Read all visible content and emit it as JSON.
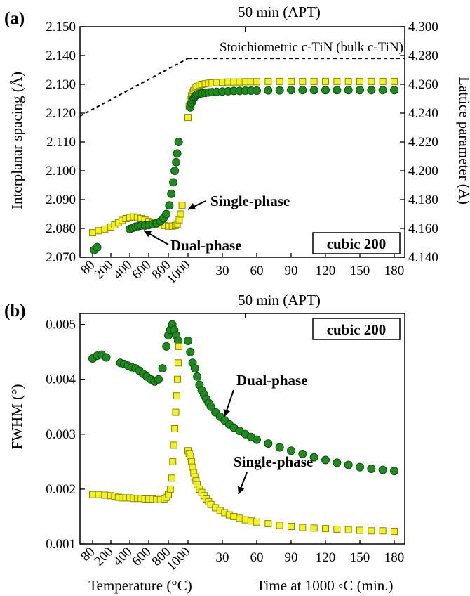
{
  "colors": {
    "dual": "#1f8a1f",
    "dual_edge": "#0c4d0c",
    "single": "#f4f21e",
    "single_edge": "#8a8a00"
  },
  "chart_data": [
    {
      "type": "scatter",
      "panel_label": "(a)",
      "top_label": "50 min (APT)",
      "ylabel": "Interplanar spacing (Å)",
      "ylabel_right": "Lattice parameter (Å)",
      "ylim": [
        2.07,
        2.15
      ],
      "ylim_right": [
        4.14,
        4.3
      ],
      "yticks": [
        "2.070",
        "2.080",
        "2.090",
        "2.100",
        "2.110",
        "2.120",
        "2.130",
        "2.140",
        "2.150"
      ],
      "yticks_right": [
        "4.140",
        "4.160",
        "4.180",
        "4.200",
        "4.220",
        "4.240",
        "4.260",
        "4.280",
        "4.300"
      ],
      "x_temperature_ticks": [
        "80",
        "200",
        "400",
        "600",
        "800",
        "1000"
      ],
      "x_time_ticks": [
        "30",
        "60",
        "90",
        "120",
        "150",
        "180"
      ],
      "box_label": "cubic 200",
      "reference_label": "Stoichiometric c-TiN (bulk c-TiN)",
      "reference_line": {
        "temperature": [
          [
            80,
            2.119
          ],
          [
            1000,
            2.139
          ]
        ],
        "time_value": 2.139
      },
      "annotations": [
        "Single-phase",
        "Dual-phase"
      ],
      "series": [
        {
          "key": "single",
          "marker": "square",
          "temperature": [
            [
              80,
              2.0785
            ],
            [
              120,
              2.0792
            ],
            [
              160,
              2.0798
            ],
            [
              200,
              2.0805
            ],
            [
              240,
              2.0812
            ],
            [
              280,
              2.082
            ],
            [
              320,
              2.0828
            ],
            [
              360,
              2.0834
            ],
            [
              400,
              2.0838
            ],
            [
              440,
              2.084
            ],
            [
              480,
              2.0838
            ],
            [
              520,
              2.0834
            ],
            [
              560,
              2.0829
            ],
            [
              600,
              2.0824
            ],
            [
              640,
              2.082
            ],
            [
              680,
              2.0815
            ],
            [
              720,
              2.0812
            ],
            [
              760,
              2.081
            ],
            [
              800,
              2.0808
            ],
            [
              840,
              2.0808
            ],
            [
              870,
              2.081
            ],
            [
              890,
              2.0815
            ],
            [
              910,
              2.083
            ],
            [
              925,
              2.085
            ],
            [
              940,
              2.088
            ]
          ],
          "time": [
            [
              0,
              2.1185
            ],
            [
              1,
              2.1225
            ],
            [
              2,
              2.1245
            ],
            [
              3,
              2.126
            ],
            [
              4,
              2.127
            ],
            [
              5,
              2.1278
            ],
            [
              6,
              2.1284
            ],
            [
              7,
              2.1289
            ],
            [
              8,
              2.1293
            ],
            [
              10,
              2.1297
            ],
            [
              12,
              2.13
            ],
            [
              15,
              2.1302
            ],
            [
              18,
              2.1304
            ],
            [
              21,
              2.1305
            ],
            [
              25,
              2.1306
            ],
            [
              30,
              2.1307
            ],
            [
              35,
              2.1308
            ],
            [
              40,
              2.1308
            ],
            [
              45,
              2.1308
            ],
            [
              50,
              2.1309
            ],
            [
              55,
              2.1309
            ],
            [
              60,
              2.1309
            ],
            [
              70,
              2.131
            ],
            [
              80,
              2.131
            ],
            [
              90,
              2.131
            ],
            [
              100,
              2.131
            ],
            [
              110,
              2.131
            ],
            [
              120,
              2.131
            ],
            [
              130,
              2.131
            ],
            [
              140,
              2.131
            ],
            [
              150,
              2.131
            ],
            [
              160,
              2.131
            ],
            [
              170,
              2.131
            ],
            [
              180,
              2.131
            ]
          ]
        },
        {
          "key": "dual",
          "marker": "circle",
          "temperature": [
            [
              90,
              2.0725
            ],
            [
              110,
              2.0735
            ],
            [
              400,
              2.0798
            ],
            [
              430,
              2.0802
            ],
            [
              460,
              2.0806
            ],
            [
              490,
              2.0808
            ],
            [
              520,
              2.081
            ],
            [
              560,
              2.081
            ],
            [
              600,
              2.0812
            ],
            [
              640,
              2.0815
            ],
            [
              680,
              2.0818
            ],
            [
              720,
              2.0825
            ],
            [
              750,
              2.0835
            ],
            [
              780,
              2.085
            ],
            [
              810,
              2.088
            ],
            [
              830,
              2.092
            ],
            [
              850,
              2.096
            ],
            [
              865,
              2.1
            ],
            [
              880,
              2.103
            ],
            [
              890,
              2.106
            ],
            [
              905,
              2.11
            ]
          ],
          "time": [
            [
              2,
              2.122
            ],
            [
              3,
              2.1235
            ],
            [
              4,
              2.1245
            ],
            [
              5,
              2.1252
            ],
            [
              6,
              2.1258
            ],
            [
              7,
              2.1262
            ],
            [
              8,
              2.1265
            ],
            [
              10,
              2.1267
            ],
            [
              12,
              2.1269
            ],
            [
              15,
              2.127
            ],
            [
              18,
              2.1272
            ],
            [
              21,
              2.1273
            ],
            [
              25,
              2.1274
            ],
            [
              30,
              2.1275
            ],
            [
              35,
              2.1276
            ],
            [
              40,
              2.1277
            ],
            [
              45,
              2.1277
            ],
            [
              50,
              2.1278
            ],
            [
              55,
              2.1278
            ],
            [
              60,
              2.1278
            ],
            [
              70,
              2.1279
            ],
            [
              80,
              2.1279
            ],
            [
              90,
              2.128
            ],
            [
              100,
              2.128
            ],
            [
              110,
              2.128
            ],
            [
              120,
              2.128
            ],
            [
              130,
              2.128
            ],
            [
              140,
              2.128
            ],
            [
              150,
              2.128
            ],
            [
              160,
              2.128
            ],
            [
              170,
              2.128
            ],
            [
              180,
              2.128
            ]
          ]
        }
      ]
    },
    {
      "type": "scatter",
      "panel_label": "(b)",
      "top_label": "50 min (APT)",
      "ylabel": "FWHM (°)",
      "ylim": [
        0.001,
        0.0052
      ],
      "yticks": [
        "0.001",
        "0.002",
        "0.003",
        "0.004",
        "0.005"
      ],
      "x_temperature_ticks": [
        "80",
        "200",
        "400",
        "600",
        "800",
        "1000"
      ],
      "x_time_ticks": [
        "30",
        "60",
        "90",
        "120",
        "150",
        "180"
      ],
      "box_label": "cubic 200",
      "xlabel_temperature": "Temperature (°C)",
      "xlabel_time": "Time at 1000 ◦C (min.)",
      "annotations": [
        "Dual-phase",
        "Single-phase"
      ],
      "series": [
        {
          "key": "dual",
          "marker": "circle",
          "temperature": [
            [
              80,
              0.00438
            ],
            [
              110,
              0.00443
            ],
            [
              140,
              0.00445
            ],
            [
              170,
              0.0044
            ],
            [
              300,
              0.0043
            ],
            [
              340,
              0.00428
            ],
            [
              380,
              0.00425
            ],
            [
              420,
              0.00422
            ],
            [
              460,
              0.0042
            ],
            [
              500,
              0.00416
            ],
            [
              540,
              0.0041
            ],
            [
              580,
              0.00405
            ],
            [
              620,
              0.004
            ],
            [
              660,
              0.00396
            ],
            [
              700,
              0.004
            ],
            [
              740,
              0.0042
            ],
            [
              780,
              0.0046
            ],
            [
              800,
              0.0048
            ],
            [
              820,
              0.0049
            ],
            [
              840,
              0.005
            ],
            [
              860,
              0.0049
            ],
            [
              880,
              0.0048
            ],
            [
              900,
              0.0047
            ]
          ],
          "time": [
            [
              0,
              0.0047
            ],
            [
              2,
              0.0045
            ],
            [
              4,
              0.0043
            ],
            [
              6,
              0.0042
            ],
            [
              8,
              0.00405
            ],
            [
              10,
              0.0039
            ],
            [
              12,
              0.0038
            ],
            [
              14,
              0.00372
            ],
            [
              16,
              0.00364
            ],
            [
              18,
              0.00357
            ],
            [
              20,
              0.0035
            ],
            [
              24,
              0.0034
            ],
            [
              28,
              0.00332
            ],
            [
              32,
              0.00325
            ],
            [
              36,
              0.00318
            ],
            [
              40,
              0.00312
            ],
            [
              45,
              0.00306
            ],
            [
              50,
              0.003
            ],
            [
              55,
              0.00295
            ],
            [
              60,
              0.0029
            ],
            [
              70,
              0.00283
            ],
            [
              80,
              0.00276
            ],
            [
              90,
              0.0027
            ],
            [
              100,
              0.00264
            ],
            [
              110,
              0.00258
            ],
            [
              120,
              0.00253
            ],
            [
              130,
              0.00248
            ],
            [
              140,
              0.00244
            ],
            [
              150,
              0.0024
            ],
            [
              160,
              0.00237
            ],
            [
              170,
              0.00235
            ],
            [
              180,
              0.00233
            ]
          ]
        },
        {
          "key": "single",
          "marker": "square",
          "temperature": [
            [
              80,
              0.0019
            ],
            [
              120,
              0.0019
            ],
            [
              160,
              0.00189
            ],
            [
              200,
              0.00188
            ],
            [
              240,
              0.00187
            ],
            [
              280,
              0.00185
            ],
            [
              320,
              0.00184
            ],
            [
              360,
              0.00184
            ],
            [
              400,
              0.00184
            ],
            [
              440,
              0.00183
            ],
            [
              480,
              0.00183
            ],
            [
              520,
              0.00183
            ],
            [
              560,
              0.00182
            ],
            [
              600,
              0.00182
            ],
            [
              640,
              0.00182
            ],
            [
              680,
              0.00181
            ],
            [
              720,
              0.00181
            ],
            [
              760,
              0.00182
            ],
            [
              780,
              0.00185
            ],
            [
              800,
              0.0019
            ],
            [
              820,
              0.002
            ],
            [
              835,
              0.0022
            ],
            [
              845,
              0.0025
            ],
            [
              855,
              0.0028
            ],
            [
              865,
              0.0031
            ],
            [
              875,
              0.0034
            ],
            [
              885,
              0.0037
            ],
            [
              893,
              0.004
            ],
            [
              900,
              0.0043
            ],
            [
              908,
              0.0046
            ]
          ],
          "time": [
            [
              0,
              0.0027
            ],
            [
              1,
              0.00265
            ],
            [
              2,
              0.0026
            ],
            [
              3,
              0.0025
            ],
            [
              4,
              0.0024
            ],
            [
              5,
              0.0023
            ],
            [
              6,
              0.00222
            ],
            [
              7,
              0.00215
            ],
            [
              8,
              0.00208
            ],
            [
              10,
              0.002
            ],
            [
              12,
              0.00194
            ],
            [
              14,
              0.00188
            ],
            [
              16,
              0.00182
            ],
            [
              18,
              0.00177
            ],
            [
              20,
              0.00172
            ],
            [
              24,
              0.00166
            ],
            [
              28,
              0.00161
            ],
            [
              32,
              0.00157
            ],
            [
              36,
              0.00153
            ],
            [
              40,
              0.0015
            ],
            [
              45,
              0.00147
            ],
            [
              50,
              0.00144
            ],
            [
              55,
              0.00142
            ],
            [
              60,
              0.0014
            ],
            [
              70,
              0.00137
            ],
            [
              80,
              0.00134
            ],
            [
              90,
              0.00132
            ],
            [
              100,
              0.0013
            ],
            [
              110,
              0.00129
            ],
            [
              120,
              0.00128
            ],
            [
              130,
              0.00127
            ],
            [
              140,
              0.00126
            ],
            [
              150,
              0.00125
            ],
            [
              160,
              0.00124
            ],
            [
              170,
              0.00124
            ],
            [
              180,
              0.00123
            ]
          ]
        }
      ]
    }
  ]
}
